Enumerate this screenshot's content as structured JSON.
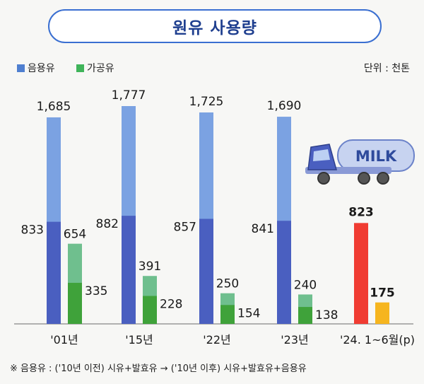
{
  "title": "원유 사용량",
  "unit_label": "단위 : 천톤",
  "footnote": "※ 음용유 : ('10년 이전) 시유+발효유 → ('10년 이후) 시유+발효유+음용유",
  "truck_text": "MILK",
  "colors": {
    "drinking_light": "#7ba2e2",
    "drinking_dark": "#4a5fc0",
    "processed_light": "#6fbf8e",
    "processed_dark": "#3fa23a",
    "h1_drinking": "#f03c32",
    "h1_processed": "#f6b51e"
  },
  "legend": [
    {
      "label": "음용유",
      "color": "#4f7fd0"
    },
    {
      "label": "가공유",
      "color": "#3fb45a"
    }
  ],
  "chart_data": {
    "type": "bar",
    "categories": [
      "'01년",
      "'15년",
      "'22년",
      "'23년",
      "'24. 1~6월(p)"
    ],
    "series": [
      {
        "name": "음용유",
        "values": [
          1685,
          1777,
          1725,
          1690,
          823
        ]
      },
      {
        "name": "가공유",
        "values": [
          654,
          391,
          250,
          240,
          175
        ]
      }
    ],
    "inner_values": {
      "drinking": [
        833,
        882,
        857,
        841,
        null
      ],
      "processed": [
        335,
        228,
        154,
        138,
        null
      ]
    },
    "value_labels": {
      "drinking_total": [
        "1,685",
        "1,777",
        "1,725",
        "1,690",
        "823"
      ],
      "drinking_inner": [
        "833",
        "882",
        "857",
        "841",
        ""
      ],
      "processed_total": [
        "654",
        "391",
        "250",
        "240",
        "175"
      ],
      "processed_inner": [
        "335",
        "228",
        "154",
        "138",
        ""
      ]
    },
    "ylim": [
      0,
      1850
    ]
  }
}
